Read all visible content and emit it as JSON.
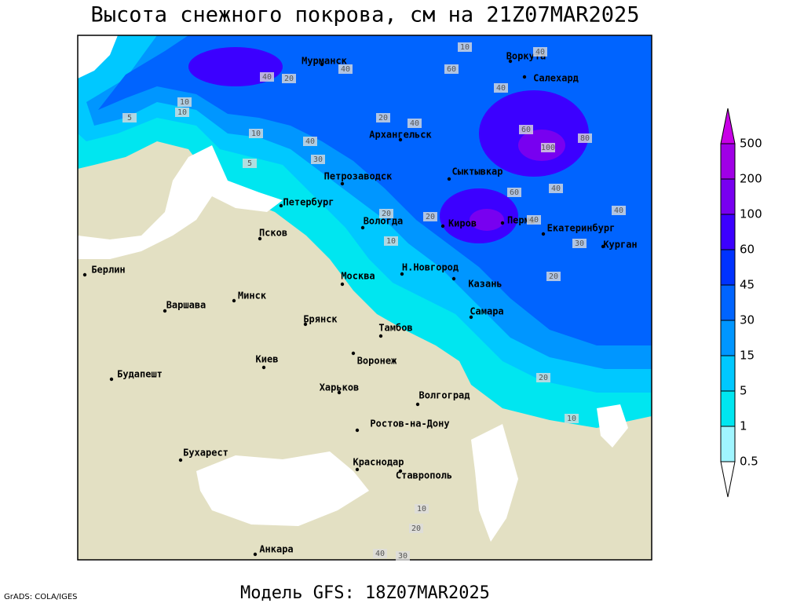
{
  "title": "Высота снежного покрова, см на 21Z07MAR2025",
  "subtitle": "Модель GFS: 18Z07MAR2025",
  "credit": "GrADS: COLA/IGES",
  "cities": [
    "Мурманск",
    "Воркута",
    "Салехард",
    "Архангельск",
    "Сыктывкар",
    "Петрозаводск",
    "Петербург",
    "Вологда",
    "Киров",
    "Пермь",
    "Екатеринбург",
    "Курган",
    "Псков",
    "Берлин",
    "Н.Новгород",
    "Москва",
    "Казань",
    "Минск",
    "Варшава",
    "Самара",
    "Брянск",
    "Тамбов",
    "Киев",
    "Воронеж",
    "Будапешт",
    "Харьков",
    "Волгоград",
    "Ростов-на-Дону",
    "Бухарест",
    "Краснодар",
    "Ставрополь",
    "Анкара"
  ],
  "contour_labels": [
    10,
    40,
    60,
    40,
    20,
    10,
    5,
    10,
    40,
    40,
    20,
    30,
    10,
    40,
    60,
    40,
    100,
    80,
    60,
    40,
    40,
    20,
    10,
    5,
    20,
    40,
    30,
    20,
    20,
    10,
    10,
    20,
    30,
    40
  ],
  "colorbar": {
    "levels": [
      0.5,
      1,
      5,
      15,
      30,
      45,
      60,
      100,
      200,
      500
    ],
    "colors": [
      "#ffffff",
      "#a0f5ff",
      "#00e6f0",
      "#00c8ff",
      "#0096ff",
      "#0064ff",
      "#0032ff",
      "#3c00ff",
      "#7800f0",
      "#a000e6",
      "#c800e6"
    ]
  }
}
